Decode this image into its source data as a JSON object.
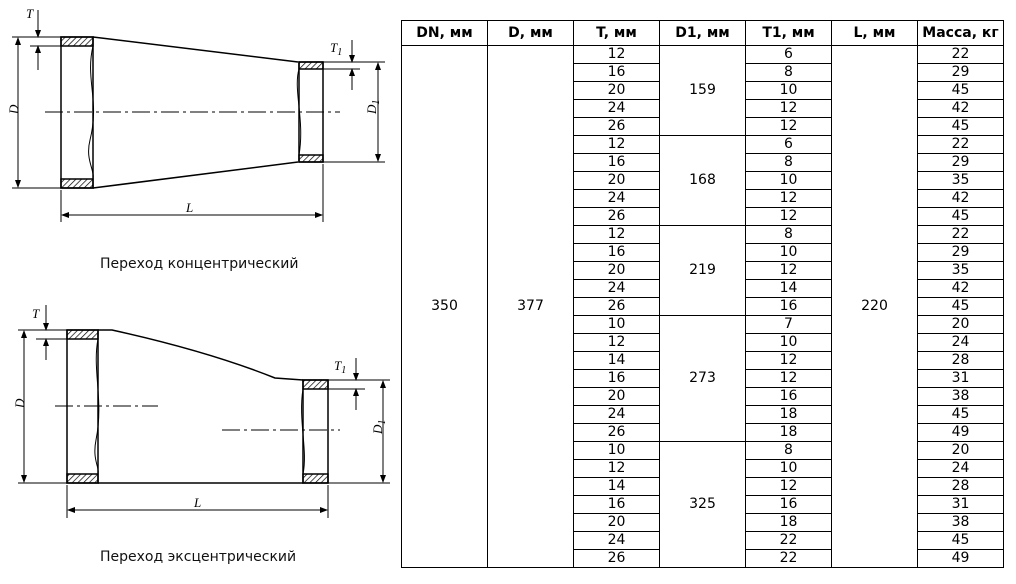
{
  "drawings": {
    "concentric": {
      "caption": "Переход концентрический",
      "labels": {
        "D": "D",
        "T": "T",
        "L": "L",
        "D1": "D",
        "D1_sub": "1",
        "T1": "T",
        "T1_sub": "1"
      }
    },
    "eccentric": {
      "caption": "Переход эксцентрический",
      "labels": {
        "D": "D",
        "T": "T",
        "L": "L",
        "D1": "D",
        "D1_sub": "1",
        "T1": "T",
        "T1_sub": "1"
      }
    }
  },
  "table": {
    "headers": [
      "DN, мм",
      "D, мм",
      "T, мм",
      "D1, мм",
      "T1, мм",
      "L, мм",
      "Масса, кг"
    ],
    "DN": "350",
    "D": "377",
    "L": "220",
    "groups": [
      {
        "D1": "159",
        "rows": [
          [
            "12",
            "6",
            "22"
          ],
          [
            "16",
            "8",
            "29"
          ],
          [
            "20",
            "10",
            "45"
          ],
          [
            "24",
            "12",
            "42"
          ],
          [
            "26",
            "12",
            "45"
          ]
        ]
      },
      {
        "D1": "168",
        "rows": [
          [
            "12",
            "6",
            "22"
          ],
          [
            "16",
            "8",
            "29"
          ],
          [
            "20",
            "10",
            "35"
          ],
          [
            "24",
            "12",
            "42"
          ],
          [
            "26",
            "12",
            "45"
          ]
        ]
      },
      {
        "D1": "219",
        "rows": [
          [
            "12",
            "8",
            "22"
          ],
          [
            "16",
            "10",
            "29"
          ],
          [
            "20",
            "12",
            "35"
          ],
          [
            "24",
            "14",
            "42"
          ],
          [
            "26",
            "16",
            "45"
          ]
        ]
      },
      {
        "D1": "273",
        "rows": [
          [
            "10",
            "7",
            "20"
          ],
          [
            "12",
            "10",
            "24"
          ],
          [
            "14",
            "12",
            "28"
          ],
          [
            "16",
            "12",
            "31"
          ],
          [
            "20",
            "16",
            "38"
          ],
          [
            "24",
            "18",
            "45"
          ],
          [
            "26",
            "18",
            "49"
          ]
        ]
      },
      {
        "D1": "325",
        "rows": [
          [
            "10",
            "8",
            "20"
          ],
          [
            "12",
            "10",
            "24"
          ],
          [
            "14",
            "12",
            "28"
          ],
          [
            "16",
            "16",
            "31"
          ],
          [
            "20",
            "18",
            "38"
          ],
          [
            "24",
            "22",
            "45"
          ],
          [
            "26",
            "22",
            "49"
          ]
        ]
      }
    ]
  }
}
